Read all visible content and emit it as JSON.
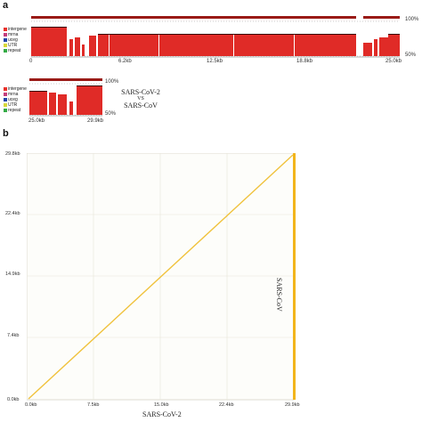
{
  "panel_a": {
    "letter": "a",
    "legend": [
      {
        "label": "intergene",
        "color": "#e8312b"
      },
      {
        "label": "mrna",
        "color": "#c33d7c"
      },
      {
        "label": "uceg",
        "color": "#2244aa"
      },
      {
        "label": "UTR",
        "color": "#d8d83a"
      },
      {
        "label": "repeat",
        "color": "#33aa44"
      }
    ],
    "top_track": {
      "pct_top": "100%",
      "pct_bottom": "50%",
      "ticks": [
        "0",
        "6.2kb",
        "12.5kb",
        "18.8kb",
        "25.0kb"
      ]
    },
    "bottom_track": {
      "pct_top": "100%",
      "pct_bottom": "50%",
      "ticks": [
        "25.0kb",
        "29.9kb"
      ]
    },
    "comparison": {
      "line1": "SARS-CoV-2",
      "line2": "VS",
      "line3": "SARS-CoV"
    },
    "colors": {
      "identity": "#e02b27",
      "header": "#9a1b17"
    }
  },
  "panel_b": {
    "letter": "b",
    "xlabel": "SARS-CoV-2",
    "ylabel": "SARS-CoV",
    "xticks": [
      "0.0kb",
      "7.5kb",
      "15.0kb",
      "22.4kb",
      "29.9kb"
    ],
    "yticks": [
      "29.8kb",
      "22.4kb",
      "14.9kb",
      "7.4kb",
      "0.0kb"
    ],
    "colors": {
      "line": "#f0c23c",
      "grid": "#e8e6d8",
      "bg": "#fdfdfa",
      "right_bar": "#f2b51c"
    }
  }
}
